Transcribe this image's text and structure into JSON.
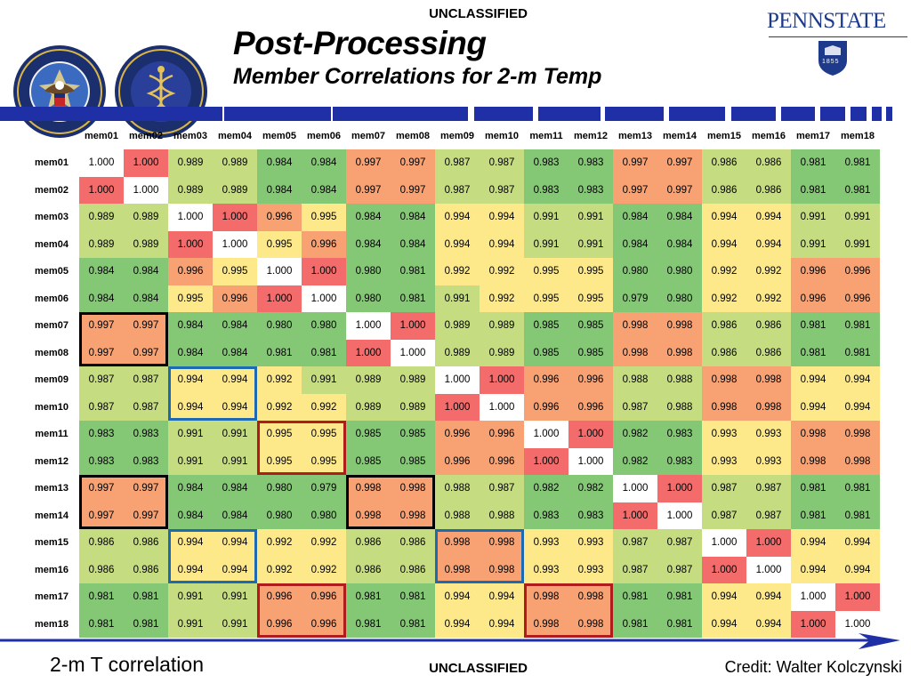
{
  "header": {
    "classification_top": "UNCLASSIFIED",
    "title": "Post-Processing",
    "subtitle": "Member Correlations for 2-m Temp",
    "university": "PENNSTATE",
    "university_year": "1855",
    "seal_left_text": "DEFENSE THREAT REDUCTION AGENCY · UNITED STATES OF AMERICA",
    "seal_right_text": "JOINT SCIENCE AND TECHNOLOGY OFFICE · CHEMICAL AND BIOLOGICAL DEFENSE"
  },
  "footer": {
    "caption": "2-m T correlation",
    "classification_bottom": "UNCLASSIFIED",
    "credit": "Credit: Walter Kolczynski"
  },
  "colors": {
    "red": "#f46b6b",
    "orange": "#f8a173",
    "yellow": "#fde989",
    "lightgreen": "#c6dc81",
    "green": "#84c774",
    "stripe": "#1f2fa6",
    "black_box": "#000000",
    "blue_box": "#1e6ab2",
    "red_box": "#b01c1c"
  },
  "matrix": {
    "labels": [
      "mem01",
      "mem02",
      "mem03",
      "mem04",
      "mem05",
      "mem06",
      "mem07",
      "mem08",
      "mem09",
      "mem10",
      "mem11",
      "mem12",
      "mem13",
      "mem14",
      "mem15",
      "mem16",
      "mem17",
      "mem18"
    ],
    "rows": [
      [
        "1.000",
        "1.000",
        "0.989",
        "0.989",
        "0.984",
        "0.984",
        "0.997",
        "0.997",
        "0.987",
        "0.987",
        "0.983",
        "0.983",
        "0.997",
        "0.997",
        "0.986",
        "0.986",
        "0.981",
        "0.981"
      ],
      [
        "1.000",
        "1.000",
        "0.989",
        "0.989",
        "0.984",
        "0.984",
        "0.997",
        "0.997",
        "0.987",
        "0.987",
        "0.983",
        "0.983",
        "0.997",
        "0.997",
        "0.986",
        "0.986",
        "0.981",
        "0.981"
      ],
      [
        "0.989",
        "0.989",
        "1.000",
        "1.000",
        "0.996",
        "0.995",
        "0.984",
        "0.984",
        "0.994",
        "0.994",
        "0.991",
        "0.991",
        "0.984",
        "0.984",
        "0.994",
        "0.994",
        "0.991",
        "0.991"
      ],
      [
        "0.989",
        "0.989",
        "1.000",
        "1.000",
        "0.995",
        "0.996",
        "0.984",
        "0.984",
        "0.994",
        "0.994",
        "0.991",
        "0.991",
        "0.984",
        "0.984",
        "0.994",
        "0.994",
        "0.991",
        "0.991"
      ],
      [
        "0.984",
        "0.984",
        "0.996",
        "0.995",
        "1.000",
        "1.000",
        "0.980",
        "0.981",
        "0.992",
        "0.992",
        "0.995",
        "0.995",
        "0.980",
        "0.980",
        "0.992",
        "0.992",
        "0.996",
        "0.996"
      ],
      [
        "0.984",
        "0.984",
        "0.995",
        "0.996",
        "1.000",
        "1.000",
        "0.980",
        "0.981",
        "0.991",
        "0.992",
        "0.995",
        "0.995",
        "0.979",
        "0.980",
        "0.992",
        "0.992",
        "0.996",
        "0.996"
      ],
      [
        "0.997",
        "0.997",
        "0.984",
        "0.984",
        "0.980",
        "0.980",
        "1.000",
        "1.000",
        "0.989",
        "0.989",
        "0.985",
        "0.985",
        "0.998",
        "0.998",
        "0.986",
        "0.986",
        "0.981",
        "0.981"
      ],
      [
        "0.997",
        "0.997",
        "0.984",
        "0.984",
        "0.981",
        "0.981",
        "1.000",
        "1.000",
        "0.989",
        "0.989",
        "0.985",
        "0.985",
        "0.998",
        "0.998",
        "0.986",
        "0.986",
        "0.981",
        "0.981"
      ],
      [
        "0.987",
        "0.987",
        "0.994",
        "0.994",
        "0.992",
        "0.991",
        "0.989",
        "0.989",
        "1.000",
        "1.000",
        "0.996",
        "0.996",
        "0.988",
        "0.988",
        "0.998",
        "0.998",
        "0.994",
        "0.994"
      ],
      [
        "0.987",
        "0.987",
        "0.994",
        "0.994",
        "0.992",
        "0.992",
        "0.989",
        "0.989",
        "1.000",
        "1.000",
        "0.996",
        "0.996",
        "0.987",
        "0.988",
        "0.998",
        "0.998",
        "0.994",
        "0.994"
      ],
      [
        "0.983",
        "0.983",
        "0.991",
        "0.991",
        "0.995",
        "0.995",
        "0.985",
        "0.985",
        "0.996",
        "0.996",
        "1.000",
        "1.000",
        "0.982",
        "0.983",
        "0.993",
        "0.993",
        "0.998",
        "0.998"
      ],
      [
        "0.983",
        "0.983",
        "0.991",
        "0.991",
        "0.995",
        "0.995",
        "0.985",
        "0.985",
        "0.996",
        "0.996",
        "1.000",
        "1.000",
        "0.982",
        "0.983",
        "0.993",
        "0.993",
        "0.998",
        "0.998"
      ],
      [
        "0.997",
        "0.997",
        "0.984",
        "0.984",
        "0.980",
        "0.979",
        "0.998",
        "0.998",
        "0.988",
        "0.987",
        "0.982",
        "0.982",
        "1.000",
        "1.000",
        "0.987",
        "0.987",
        "0.981",
        "0.981"
      ],
      [
        "0.997",
        "0.997",
        "0.984",
        "0.984",
        "0.980",
        "0.980",
        "0.998",
        "0.998",
        "0.988",
        "0.988",
        "0.983",
        "0.983",
        "1.000",
        "1.000",
        "0.987",
        "0.987",
        "0.981",
        "0.981"
      ],
      [
        "0.986",
        "0.986",
        "0.994",
        "0.994",
        "0.992",
        "0.992",
        "0.986",
        "0.986",
        "0.998",
        "0.998",
        "0.993",
        "0.993",
        "0.987",
        "0.987",
        "1.000",
        "1.000",
        "0.994",
        "0.994"
      ],
      [
        "0.986",
        "0.986",
        "0.994",
        "0.994",
        "0.992",
        "0.992",
        "0.986",
        "0.986",
        "0.998",
        "0.998",
        "0.993",
        "0.993",
        "0.987",
        "0.987",
        "1.000",
        "1.000",
        "0.994",
        "0.994"
      ],
      [
        "0.981",
        "0.981",
        "0.991",
        "0.991",
        "0.996",
        "0.996",
        "0.981",
        "0.981",
        "0.994",
        "0.994",
        "0.998",
        "0.998",
        "0.981",
        "0.981",
        "0.994",
        "0.994",
        "1.000",
        "1.000"
      ],
      [
        "0.981",
        "0.981",
        "0.991",
        "0.991",
        "0.996",
        "0.996",
        "0.981",
        "0.981",
        "0.994",
        "0.994",
        "0.998",
        "0.998",
        "0.981",
        "0.981",
        "0.994",
        "0.994",
        "1.000",
        "1.000"
      ]
    ],
    "highlight_boxes": [
      {
        "row_start": 7,
        "row_end": 8,
        "col_start": 1,
        "col_end": 2,
        "color": "black"
      },
      {
        "row_start": 13,
        "row_end": 14,
        "col_start": 1,
        "col_end": 2,
        "color": "black"
      },
      {
        "row_start": 13,
        "row_end": 14,
        "col_start": 7,
        "col_end": 8,
        "color": "black"
      },
      {
        "row_start": 9,
        "row_end": 10,
        "col_start": 3,
        "col_end": 4,
        "color": "blue"
      },
      {
        "row_start": 15,
        "row_end": 16,
        "col_start": 3,
        "col_end": 4,
        "color": "blue"
      },
      {
        "row_start": 15,
        "row_end": 16,
        "col_start": 9,
        "col_end": 10,
        "color": "blue"
      },
      {
        "row_start": 11,
        "row_end": 12,
        "col_start": 5,
        "col_end": 6,
        "color": "red"
      },
      {
        "row_start": 17,
        "row_end": 18,
        "col_start": 5,
        "col_end": 6,
        "color": "red"
      },
      {
        "row_start": 17,
        "row_end": 18,
        "col_start": 11,
        "col_end": 12,
        "color": "red"
      }
    ]
  }
}
